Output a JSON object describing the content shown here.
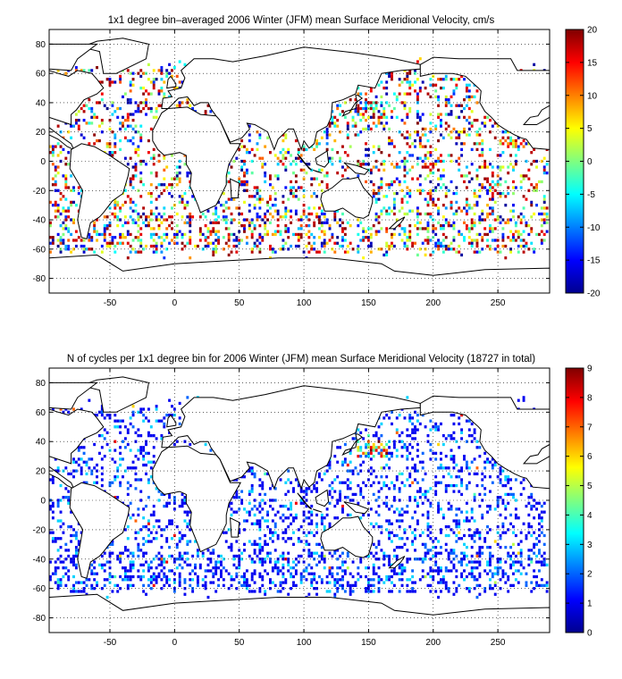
{
  "chart_data": [
    {
      "type": "heatmap",
      "title": "1x1 degree bin–averaged 2006 Winter (JFM) mean Surface Meridional Velocity, cm/s",
      "xlabel": "",
      "ylabel": "",
      "xlim": [
        -97,
        290
      ],
      "ylim": [
        -90,
        90
      ],
      "x_ticks": [
        -50,
        0,
        50,
        100,
        150,
        200,
        250
      ],
      "y_ticks": [
        80,
        60,
        40,
        20,
        0,
        -20,
        -40,
        -60,
        -80
      ],
      "grid": true,
      "colorbar": {
        "min": -20,
        "max": 20,
        "ticks": [
          20,
          15,
          10,
          5,
          0,
          -5,
          -10,
          -15,
          -20
        ],
        "colormap": "jet"
      },
      "value_distribution": "mostly scattered values between -20 and 20 cm/s with strong positive (red) and negative (blue) cells along the Kuroshio, Gulf Stream and Southern Ocean",
      "seed": 7
    },
    {
      "type": "heatmap",
      "title": "N of cycles per 1x1 degree bin for 2006 Winter (JFM) mean Surface Meridional Velocity (18727 in total)",
      "xlabel": "",
      "ylabel": "",
      "xlim": [
        -97,
        290
      ],
      "ylim": [
        -90,
        90
      ],
      "x_ticks": [
        -50,
        0,
        50,
        100,
        150,
        200,
        250
      ],
      "y_ticks": [
        80,
        60,
        40,
        20,
        0,
        -20,
        -40,
        -60,
        -80
      ],
      "grid": true,
      "colorbar": {
        "min": 0,
        "max": 9,
        "ticks": [
          9,
          8,
          7,
          6,
          5,
          4,
          3,
          2,
          1,
          0
        ],
        "colormap": "jet"
      },
      "total_cycles": 18727,
      "value_distribution": "mostly 1-2 cycles per bin (blue), with higher counts (up to 9) concentrated near the Kuroshio region around 150E, 35N",
      "seed": 13
    }
  ]
}
